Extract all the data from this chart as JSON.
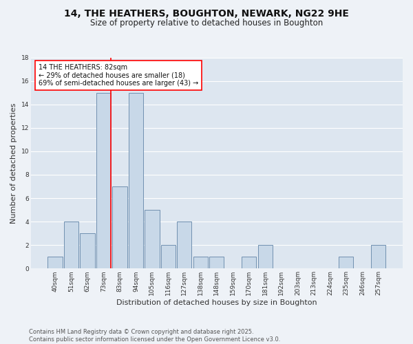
{
  "title": "14, THE HEATHERS, BOUGHTON, NEWARK, NG22 9HE",
  "subtitle": "Size of property relative to detached houses in Boughton",
  "xlabel": "Distribution of detached houses by size in Boughton",
  "ylabel": "Number of detached properties",
  "categories": [
    "40sqm",
    "51sqm",
    "62sqm",
    "73sqm",
    "83sqm",
    "94sqm",
    "105sqm",
    "116sqm",
    "127sqm",
    "138sqm",
    "148sqm",
    "159sqm",
    "170sqm",
    "181sqm",
    "192sqm",
    "203sqm",
    "213sqm",
    "224sqm",
    "235sqm",
    "246sqm",
    "257sqm"
  ],
  "values": [
    1,
    4,
    3,
    15,
    7,
    15,
    5,
    2,
    4,
    1,
    1,
    0,
    1,
    2,
    0,
    0,
    0,
    0,
    1,
    0,
    2
  ],
  "bar_color": "#c8d8e8",
  "bar_edge_color": "#7090b0",
  "vline_color": "red",
  "vline_x": 3.45,
  "annotation_text": "14 THE HEATHERS: 82sqm\n← 29% of detached houses are smaller (18)\n69% of semi-detached houses are larger (43) →",
  "annotation_box_color": "white",
  "annotation_box_edge_color": "red",
  "ylim": [
    0,
    18
  ],
  "yticks": [
    0,
    2,
    4,
    6,
    8,
    10,
    12,
    14,
    16,
    18
  ],
  "footer": "Contains HM Land Registry data © Crown copyright and database right 2025.\nContains public sector information licensed under the Open Government Licence v3.0.",
  "bg_color": "#eef2f7",
  "plot_bg_color": "#dde6f0",
  "grid_color": "white",
  "title_fontsize": 10,
  "subtitle_fontsize": 8.5,
  "label_fontsize": 8,
  "tick_fontsize": 6.5,
  "annotation_fontsize": 7,
  "footer_fontsize": 6
}
